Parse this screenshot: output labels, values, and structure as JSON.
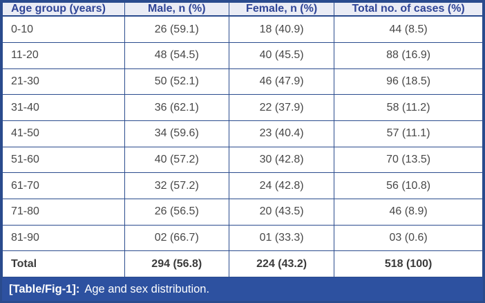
{
  "table": {
    "columns": [
      "Age group (years)",
      "Male, n (%)",
      "Female, n (%)",
      "Total no. of cases (%)"
    ],
    "rows": [
      {
        "cells": [
          "0-10",
          "26 (59.1)",
          "18 (40.9)",
          "44 (8.5)"
        ],
        "bold": false
      },
      {
        "cells": [
          "11-20",
          "48 (54.5)",
          "40 (45.5)",
          "88 (16.9)"
        ],
        "bold": false
      },
      {
        "cells": [
          "21-30",
          "50 (52.1)",
          "46 (47.9)",
          "96 (18.5)"
        ],
        "bold": false
      },
      {
        "cells": [
          "31-40",
          "36 (62.1)",
          "22 (37.9)",
          "58 (11.2)"
        ],
        "bold": false
      },
      {
        "cells": [
          "41-50",
          "34 (59.6)",
          "23 (40.4)",
          "57 (11.1)"
        ],
        "bold": false
      },
      {
        "cells": [
          "51-60",
          "40 (57.2)",
          "30 (42.8)",
          "70 (13.5)"
        ],
        "bold": false
      },
      {
        "cells": [
          "61-70",
          "32 (57.2)",
          "24 (42.8)",
          "56 (10.8)"
        ],
        "bold": false
      },
      {
        "cells": [
          "71-80",
          "26 (56.5)",
          "20 (43.5)",
          "46 (8.9)"
        ],
        "bold": false
      },
      {
        "cells": [
          "81-90",
          "02 (66.7)",
          "01 (33.3)",
          "03 (0.6)"
        ],
        "bold": false
      },
      {
        "cells": [
          "Total",
          "294 (56.8)",
          "224 (43.2)",
          "518 (100)"
        ],
        "bold": true
      }
    ]
  },
  "caption": {
    "label": "[Table/Fig-1]:",
    "text": "Age and sex distribution."
  },
  "colors": {
    "border": "#2a4b8d",
    "header_background": "#eaecf5",
    "header_text": "#2e4496",
    "body_text": "#474747",
    "caption_background": "#2d51a0",
    "caption_text": "#ffffff"
  }
}
